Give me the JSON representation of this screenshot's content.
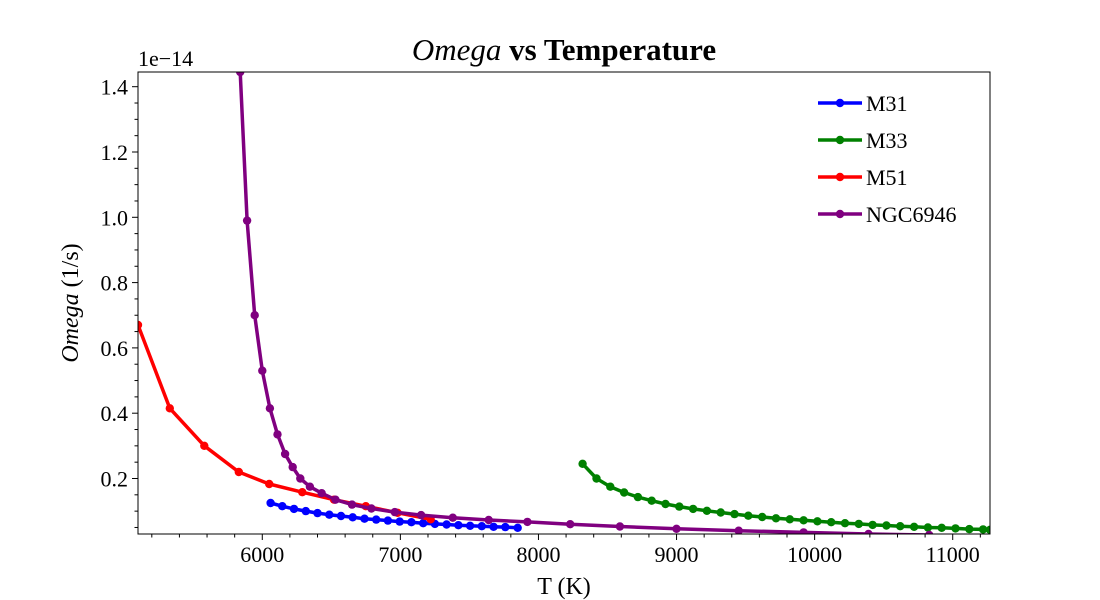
{
  "chart_data": {
    "type": "line",
    "title_italic": "Omega",
    "title_rest": " vs Temperature",
    "xlabel": "T (K)",
    "ylabel_italic": "Omega",
    "ylabel_rest": " (1/s)",
    "offset_text": "1e−14",
    "xlim": [
      5100,
      11270
    ],
    "ylim": [
      0.03,
      1.445
    ],
    "xticks": [
      6000,
      7000,
      8000,
      9000,
      10000,
      11000
    ],
    "yticks": [
      0.2,
      0.4,
      0.6,
      0.8,
      1.0,
      1.2,
      1.4
    ],
    "xtick_labels": [
      "6000",
      "7000",
      "8000",
      "9000",
      "10000",
      "11000"
    ],
    "ytick_labels": [
      "0.2",
      "0.4",
      "0.6",
      "0.8",
      "1.0",
      "1.2",
      "1.4"
    ],
    "legend_position": "top-right",
    "grid": false,
    "series": [
      {
        "name": "M31",
        "color": "#0000ff",
        "x": [
          6060,
          6145,
          6230,
          6315,
          6400,
          6485,
          6570,
          6655,
          6740,
          6825,
          6910,
          6995,
          7080,
          7165,
          7250,
          7335,
          7420,
          7505,
          7590,
          7675,
          7760,
          7850
        ],
        "y": [
          0.125,
          0.115,
          0.107,
          0.1,
          0.094,
          0.089,
          0.085,
          0.081,
          0.077,
          0.074,
          0.071,
          0.068,
          0.066,
          0.063,
          0.061,
          0.059,
          0.057,
          0.055,
          0.054,
          0.052,
          0.051,
          0.049
        ]
      },
      {
        "name": "M33",
        "color": "#008000",
        "x": [
          8320,
          8420,
          8520,
          8620,
          8720,
          8820,
          8920,
          9020,
          9120,
          9220,
          9320,
          9420,
          9520,
          9620,
          9720,
          9820,
          9920,
          10020,
          10120,
          10220,
          10320,
          10420,
          10520,
          10620,
          10720,
          10820,
          10920,
          11020,
          11120,
          11220,
          11270
        ],
        "y": [
          0.245,
          0.2,
          0.175,
          0.157,
          0.143,
          0.132,
          0.122,
          0.114,
          0.107,
          0.101,
          0.096,
          0.091,
          0.086,
          0.082,
          0.078,
          0.075,
          0.072,
          0.069,
          0.066,
          0.063,
          0.061,
          0.058,
          0.056,
          0.054,
          0.052,
          0.05,
          0.049,
          0.047,
          0.045,
          0.044,
          0.043
        ]
      },
      {
        "name": "M51",
        "color": "#ff0000",
        "x": [
          5100,
          5330,
          5580,
          5830,
          6050,
          6290,
          6520,
          6750,
          6980,
          7220
        ],
        "y": [
          0.67,
          0.415,
          0.3,
          0.22,
          0.183,
          0.158,
          0.135,
          0.115,
          0.095,
          0.075
        ]
      },
      {
        "name": "NGC6946",
        "color": "#800080",
        "x": [
          5840,
          5890,
          5945,
          6000,
          6055,
          6110,
          6165,
          6220,
          6275,
          6345,
          6430,
          6530,
          6650,
          6790,
          6960,
          7150,
          7380,
          7640,
          7920,
          8230,
          8590,
          9000,
          9450,
          9920,
          10390,
          10830
        ],
        "y": [
          1.445,
          0.99,
          0.7,
          0.53,
          0.415,
          0.335,
          0.275,
          0.235,
          0.2,
          0.175,
          0.155,
          0.135,
          0.12,
          0.108,
          0.097,
          0.088,
          0.08,
          0.073,
          0.067,
          0.06,
          0.053,
          0.046,
          0.04,
          0.035,
          0.03,
          0.027
        ]
      }
    ]
  }
}
